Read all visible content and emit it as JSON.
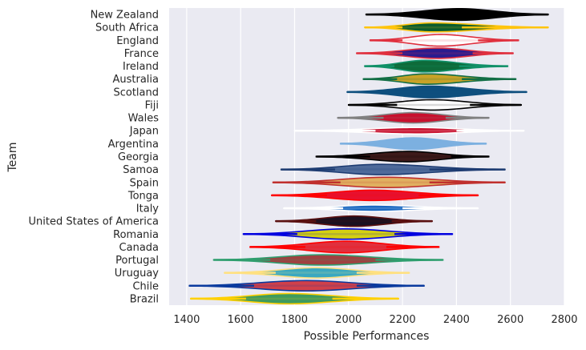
{
  "chart_data": {
    "type": "violin",
    "xlabel": "Possible Performances",
    "ylabel": "Team",
    "xlim": [
      1335,
      2800
    ],
    "x_ticks": [
      1400,
      1600,
      1800,
      2000,
      2200,
      2400,
      2600,
      2800
    ],
    "grid": true,
    "background": "#EAEAF2",
    "series": [
      {
        "team": "New Zealand",
        "min": 2065,
        "max": 2740,
        "median": 2410,
        "body_lo": 2260,
        "body_hi": 2560,
        "fill": "#000000",
        "line": "#000000",
        "width": 0.45
      },
      {
        "team": "South Africa",
        "min": 2060,
        "max": 2740,
        "median": 2310,
        "body_lo": 2200,
        "body_hi": 2420,
        "fill": "#0B5C2E",
        "line": "#FFC40C",
        "width": 0.35
      },
      {
        "team": "England",
        "min": 2080,
        "max": 2630,
        "median": 2340,
        "body_lo": 2200,
        "body_hi": 2480,
        "fill": "#FFFFFF",
        "line": "#E0303E",
        "width": 0.45
      },
      {
        "team": "France",
        "min": 2030,
        "max": 2610,
        "median": 2330,
        "body_lo": 2200,
        "body_hi": 2460,
        "fill": "#2A1C8F",
        "line": "#E0303E",
        "width": 0.4
      },
      {
        "team": "Ireland",
        "min": 2060,
        "max": 2590,
        "median": 2280,
        "body_lo": 2170,
        "body_hi": 2410,
        "fill": "#0E6B3A",
        "line": "#119169",
        "width": 0.45
      },
      {
        "team": "Australia",
        "min": 2055,
        "max": 2620,
        "median": 2290,
        "body_lo": 2180,
        "body_hi": 2420,
        "fill": "#C9A227",
        "line": "#126E45",
        "width": 0.4
      },
      {
        "team": "Scotland",
        "min": 1995,
        "max": 2660,
        "median": 2300,
        "body_lo": 2160,
        "body_hi": 2420,
        "fill": "#0E4F7E",
        "line": "#0E4F7E",
        "width": 0.45
      },
      {
        "team": "Fiji",
        "min": 2000,
        "max": 2640,
        "median": 2310,
        "body_lo": 2180,
        "body_hi": 2450,
        "fill": "#FFFFFF",
        "line": "#000000",
        "width": 0.4
      },
      {
        "team": "Wales",
        "min": 1960,
        "max": 2520,
        "median": 2240,
        "body_lo": 2130,
        "body_hi": 2360,
        "fill": "#C8102E",
        "line": "#808080",
        "width": 0.4
      },
      {
        "team": "Japan",
        "min": 1800,
        "max": 2650,
        "median": 2250,
        "body_lo": 2100,
        "body_hi": 2400,
        "fill": "#C8102E",
        "line": "#FFFFFF",
        "width": 0.25
      },
      {
        "team": "Argentina",
        "min": 1970,
        "max": 2510,
        "median": 2240,
        "body_lo": 2100,
        "body_hi": 2400,
        "fill": "#7CB0E0",
        "line": "#7CB0E0",
        "width": 0.45
      },
      {
        "team": "Georgia",
        "min": 1880,
        "max": 2520,
        "median": 2220,
        "body_lo": 2080,
        "body_hi": 2380,
        "fill": "#3D1A1A",
        "line": "#000000",
        "width": 0.4
      },
      {
        "team": "Samoa",
        "min": 1750,
        "max": 2580,
        "median": 2120,
        "body_lo": 1950,
        "body_hi": 2300,
        "fill": "#4E6A9A",
        "line": "#1E3C72",
        "width": 0.4
      },
      {
        "team": "Spain",
        "min": 1720,
        "max": 2580,
        "median": 2140,
        "body_lo": 1970,
        "body_hi": 2300,
        "fill": "#E0B060",
        "line": "#C0302E",
        "width": 0.4
      },
      {
        "team": "Tonga",
        "min": 1715,
        "max": 2480,
        "median": 2090,
        "body_lo": 1920,
        "body_hi": 2260,
        "fill": "#E8102E",
        "line": "#FF0000",
        "width": 0.4
      },
      {
        "team": "Italy",
        "min": 1760,
        "max": 2480,
        "median": 2090,
        "body_lo": 1980,
        "body_hi": 2200,
        "fill": "#1565C0",
        "line": "#FFFFFF",
        "width": 0.25
      },
      {
        "team": "United States of America",
        "min": 1730,
        "max": 2310,
        "median": 2020,
        "body_lo": 1880,
        "body_hi": 2160,
        "fill": "#1A1020",
        "line": "#5A1010",
        "width": 0.4
      },
      {
        "team": "Romania",
        "min": 1610,
        "max": 2385,
        "median": 1990,
        "body_lo": 1810,
        "body_hi": 2170,
        "fill": "#D4D010",
        "line": "#0000E0",
        "width": 0.4
      },
      {
        "team": "Canada",
        "min": 1635,
        "max": 2335,
        "median": 1990,
        "body_lo": 1840,
        "body_hi": 2140,
        "fill": "#E0303E",
        "line": "#FF0000",
        "width": 0.45
      },
      {
        "team": "Portugal",
        "min": 1500,
        "max": 2350,
        "median": 1900,
        "body_lo": 1710,
        "body_hi": 2100,
        "fill": "#A04040",
        "line": "#2E9E6E",
        "width": 0.4
      },
      {
        "team": "Uruguay",
        "min": 1540,
        "max": 2225,
        "median": 1880,
        "body_lo": 1730,
        "body_hi": 2030,
        "fill": "#3BA8C0",
        "line": "#FFE080",
        "width": 0.4
      },
      {
        "team": "Chile",
        "min": 1410,
        "max": 2280,
        "median": 1840,
        "body_lo": 1650,
        "body_hi": 2030,
        "fill": "#D0404A",
        "line": "#0A3A9E",
        "width": 0.4
      },
      {
        "team": "Brazil",
        "min": 1415,
        "max": 2185,
        "median": 1780,
        "body_lo": 1620,
        "body_hi": 1940,
        "fill": "#3E9A5E",
        "line": "#FFD000",
        "width": 0.4
      }
    ]
  }
}
